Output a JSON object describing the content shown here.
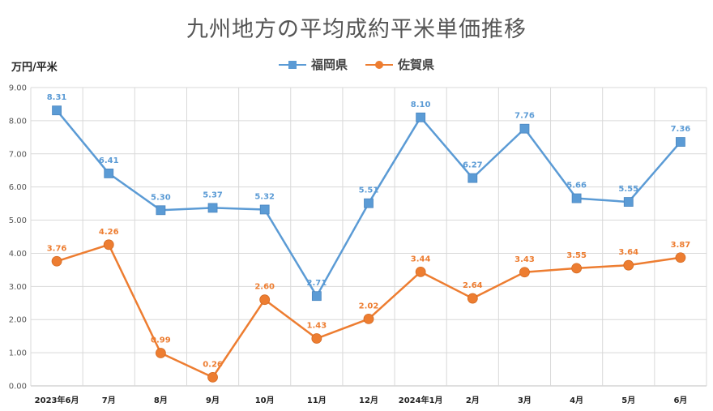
{
  "chart_data": {
    "type": "line",
    "title": "九州地方の平均成約平米単価推移",
    "ylabel": "万円/平米",
    "xlabel": "",
    "categories": [
      "2023年6月",
      "7月",
      "8月",
      "9月",
      "10月",
      "11月",
      "12月",
      "2024年1月",
      "2月",
      "3月",
      "4月",
      "5月",
      "6月"
    ],
    "ylim": [
      0,
      9
    ],
    "yticks": [
      "0.00",
      "1.00",
      "2.00",
      "3.00",
      "4.00",
      "5.00",
      "6.00",
      "7.00",
      "8.00",
      "9.00"
    ],
    "grid": true,
    "legend": "top-center",
    "series": [
      {
        "name": "福岡県",
        "color": "#5b9bd5",
        "marker": "square",
        "values": [
          8.31,
          6.41,
          5.3,
          5.37,
          5.32,
          2.71,
          5.51,
          8.1,
          6.27,
          7.76,
          5.66,
          5.55,
          7.36
        ],
        "labels": [
          "8.31",
          "6.41",
          "5.30",
          "5.37",
          "5.32",
          "2.71",
          "5.51",
          "8.10",
          "6.27",
          "7.76",
          "5.66",
          "5.55",
          "7.36"
        ]
      },
      {
        "name": "佐賀県",
        "color": "#ed7d31",
        "marker": "circle",
        "values": [
          3.76,
          4.26,
          0.99,
          0.26,
          2.6,
          1.43,
          2.02,
          3.44,
          2.64,
          3.43,
          3.55,
          3.64,
          3.87
        ],
        "labels": [
          "3.76",
          "4.26",
          "0.99",
          "0.26",
          "2.60",
          "1.43",
          "2.02",
          "3.44",
          "2.64",
          "3.43",
          "3.55",
          "3.64",
          "3.87"
        ]
      }
    ]
  }
}
